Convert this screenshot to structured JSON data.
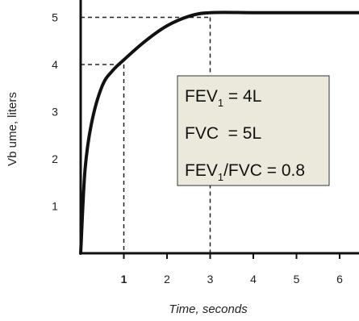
{
  "chart_data": {
    "type": "line",
    "title": "",
    "xlabel": "Time, seconds",
    "ylabel": "Vb ume, liters",
    "xlim": [
      0,
      6.5
    ],
    "ylim": [
      0,
      5.3
    ],
    "x_ticks": [
      "1",
      "2",
      "3",
      "4",
      "5",
      "6"
    ],
    "y_ticks": [
      "1",
      "2",
      "3",
      "4",
      "5"
    ],
    "grid": false,
    "series": [
      {
        "values_x": [
          0,
          0.1,
          0.25,
          0.5,
          0.75,
          1.0,
          1.5,
          2.0,
          2.5,
          3.0,
          4.0,
          5.0,
          6.0,
          6.5
        ],
        "values_y": [
          0,
          1.75,
          2.75,
          3.55,
          3.88,
          4.1,
          4.5,
          4.82,
          5.02,
          5.1,
          5.1,
          5.1,
          5.1,
          5.1
        ]
      }
    ],
    "reference_lines": [
      {
        "x": 1,
        "y": 4
      },
      {
        "x": 3,
        "y": 5
      }
    ],
    "annotation_box": {
      "lines": [
        {
          "main": "FEV",
          "sub": "1",
          "tail": " = 4L"
        },
        {
          "main": "FVC  = 5L",
          "sub": "",
          "tail": ""
        },
        {
          "main": "FEV",
          "sub": "1",
          "tail": "/FVC = 0.8"
        }
      ],
      "background": "#ebe8dc",
      "border": "#333333"
    },
    "colors": {
      "curve": "#111111",
      "axis": "#111111",
      "dash": "#222222",
      "text": "#222222"
    }
  }
}
